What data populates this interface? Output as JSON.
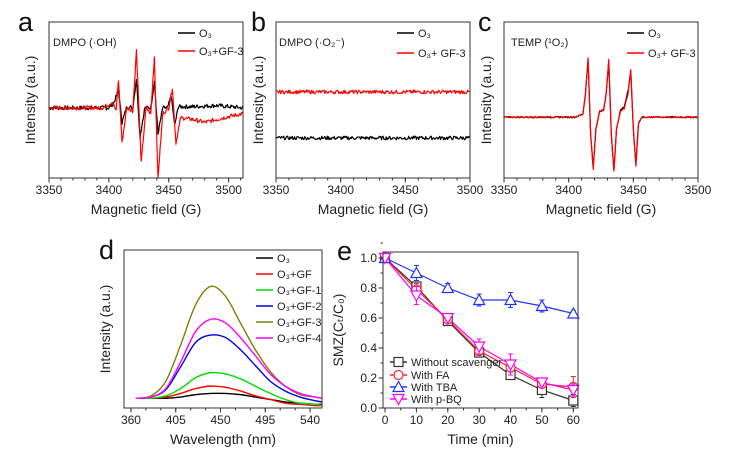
{
  "chart_data": [
    {
      "panel": "a",
      "type": "line",
      "annotation": "DMPO (·OH)",
      "xlabel": "Magnetic field (G)",
      "ylabel": "Intensity (a.u.)",
      "xlim": [
        3350,
        3512
      ],
      "ylim": [
        -1.21,
        1.48
      ],
      "xticks": [
        3350,
        3400,
        3450,
        3500
      ],
      "grid": false,
      "legend": "top-right",
      "series": [
        {
          "name": "O₃",
          "color": "#000000",
          "x": [
            3350,
            3380,
            3400,
            3404,
            3408,
            3411,
            3415,
            3420,
            3423,
            3426,
            3430,
            3435,
            3438,
            3441,
            3445,
            3449,
            3452,
            3455,
            3458,
            3470,
            3490,
            3512
          ],
          "y": [
            0,
            0,
            0,
            0.08,
            0.3,
            -0.25,
            0.02,
            0,
            0.5,
            -0.5,
            0,
            0,
            0.45,
            -0.45,
            0,
            0,
            0.2,
            -0.3,
            0.02,
            0.02,
            0.04,
            0
          ]
        },
        {
          "name": "O₃+GF-3",
          "color": "#ff0000",
          "x": [
            3350,
            3370,
            3395,
            3403,
            3406,
            3408,
            3411,
            3415,
            3420,
            3423,
            3427,
            3431,
            3435,
            3438,
            3441,
            3445,
            3450,
            3453,
            3456,
            3460,
            3470,
            3480,
            3490,
            3500,
            3512
          ],
          "y": [
            0,
            0,
            0,
            0.1,
            -0.05,
            0.48,
            -0.59,
            0,
            -0.05,
            1.0,
            -0.95,
            0,
            -0.1,
            0.88,
            -1.21,
            -0.1,
            0,
            0.34,
            -0.6,
            -0.17,
            -0.2,
            -0.25,
            -0.2,
            -0.15,
            -0.1
          ]
        }
      ]
    },
    {
      "panel": "b",
      "type": "line",
      "annotation": "DMPO (·O₂⁻)",
      "xlabel": "Magnetic field (G)",
      "ylabel": "Intensity (a.u.)",
      "xlim": [
        3350,
        3500
      ],
      "ylim": [
        -0.87,
        2.52
      ],
      "xticks": [
        3350,
        3400,
        3450,
        3500
      ],
      "grid": false,
      "legend": "top-right",
      "series": [
        {
          "name": "O₃",
          "color": "#000000",
          "x": [
            3350,
            3500
          ],
          "y": [
            0,
            0
          ]
        },
        {
          "name": "O₃+ GF-3",
          "color": "#ff0000",
          "x": [
            3350,
            3500
          ],
          "y": [
            1,
            1
          ]
        }
      ]
    },
    {
      "panel": "c",
      "type": "line",
      "annotation": "TEMP (¹O₂)",
      "xlabel": "Magnetic field (G)",
      "ylabel": "Intensity (a.u.)",
      "xlim": [
        3350,
        3500
      ],
      "ylim": [
        -1.03,
        1.61
      ],
      "xticks": [
        3350,
        3400,
        3450,
        3500
      ],
      "grid": false,
      "legend": "top-right",
      "series": [
        {
          "name": "O₃",
          "color": "#000000",
          "x": [
            3350,
            3405,
            3411,
            3413,
            3415,
            3417,
            3419,
            3421,
            3424,
            3427,
            3429,
            3431,
            3433,
            3435,
            3437,
            3440,
            3443,
            3446,
            3448,
            3450,
            3452,
            3454,
            3457,
            3500
          ],
          "y": [
            0,
            0,
            0.05,
            0.4,
            0.97,
            -0.3,
            -0.86,
            -0.2,
            0.1,
            0.12,
            0.4,
            0.94,
            -0.3,
            -0.9,
            -0.2,
            0.12,
            0.18,
            0.45,
            0.78,
            -0.2,
            -0.8,
            -0.1,
            0,
            0
          ]
        },
        {
          "name": "O₃+ GF-3",
          "color": "#ff0000",
          "x": [
            3350,
            3405,
            3411,
            3413,
            3415,
            3417,
            3419,
            3421,
            3424,
            3427,
            3429,
            3431,
            3433,
            3435,
            3437,
            3440,
            3443,
            3446,
            3448,
            3450,
            3452,
            3454,
            3457,
            3500
          ],
          "y": [
            0,
            0,
            0.05,
            0.4,
            1.0,
            -0.3,
            -0.88,
            -0.2,
            0.1,
            0.12,
            0.4,
            0.97,
            -0.3,
            -0.92,
            -0.2,
            0.1,
            0.15,
            0.4,
            0.8,
            -0.2,
            -0.83,
            -0.1,
            0,
            0
          ]
        }
      ]
    },
    {
      "panel": "d",
      "type": "line",
      "xlabel": "Wavelength (nm)",
      "ylabel": "Intensity (a.u.)",
      "xlim": [
        353,
        552
      ],
      "ylim": [
        0,
        130
      ],
      "xticks": [
        360,
        405,
        450,
        495,
        540
      ],
      "grid": false,
      "legend": "top-right",
      "x": [
        365,
        380,
        395,
        410,
        425,
        440,
        455,
        470,
        485,
        500,
        515,
        530,
        545,
        552
      ],
      "series": [
        {
          "name": "O₃",
          "color": "#000000",
          "values": [
            8,
            8,
            8,
            9,
            11,
            12,
            12,
            11,
            9,
            7,
            5,
            4,
            3,
            3
          ]
        },
        {
          "name": "O₃+GF",
          "color": "#ff0000",
          "values": [
            8,
            8,
            9,
            12,
            16,
            18,
            17,
            14,
            10,
            7,
            4,
            3,
            2,
            2
          ]
        },
        {
          "name": "O₃+GF-1",
          "color": "#00dd00",
          "values": [
            8,
            8,
            10,
            16,
            25,
            29,
            28,
            24,
            18,
            12,
            7,
            4,
            3,
            2
          ]
        },
        {
          "name": "O₃+GF-2",
          "color": "#0000ee",
          "values": [
            8,
            9,
            15,
            34,
            54,
            60,
            58,
            48,
            35,
            22,
            14,
            9,
            6,
            5
          ]
        },
        {
          "name": "O₃+GF-3",
          "color": "#808000",
          "values": [
            8,
            10,
            22,
            52,
            85,
            100,
            92,
            70,
            48,
            30,
            18,
            11,
            9,
            8
          ]
        },
        {
          "name": "O₃+GF-4",
          "color": "#ff00ff",
          "values": [
            8,
            9,
            16,
            38,
            63,
            73,
            70,
            58,
            43,
            28,
            18,
            12,
            9,
            8
          ]
        }
      ]
    },
    {
      "panel": "e",
      "type": "line",
      "xlabel": "Time (min)",
      "ylabel": "SMZ(Cₜ/C₀)",
      "xlim": [
        -0.65,
        61.5
      ],
      "ylim": [
        0,
        1.04
      ],
      "xticks": [
        0,
        10,
        20,
        30,
        40,
        50,
        60
      ],
      "yticks": [
        "0.0",
        "0.2",
        "0.4",
        "0.6",
        "0.8",
        "1.0"
      ],
      "grid": false,
      "legend": "bottom-left",
      "x": [
        0,
        10,
        20,
        30,
        40,
        50,
        60
      ],
      "series": [
        {
          "name": "Without scavenger",
          "color": "#333333",
          "marker": "square",
          "values": [
            1.0,
            0.81,
            0.58,
            0.37,
            0.22,
            0.12,
            0.05
          ],
          "errors": [
            0.02,
            0.03,
            0.02,
            0.03,
            0.02,
            0.05,
            0.04
          ]
        },
        {
          "name": "With FA",
          "color": "#ff2222",
          "marker": "circle",
          "values": [
            1.0,
            0.79,
            0.59,
            0.38,
            0.27,
            0.16,
            0.14
          ],
          "errors": [
            0.02,
            0.04,
            0.02,
            0.03,
            0.03,
            0.02,
            0.07
          ]
        },
        {
          "name": "With TBA",
          "color": "#2233ff",
          "marker": "triangle-up",
          "values": [
            1.0,
            0.9,
            0.8,
            0.72,
            0.72,
            0.68,
            0.63
          ],
          "errors": [
            0.02,
            0.05,
            0.03,
            0.04,
            0.05,
            0.04,
            0.02
          ]
        },
        {
          "name": "With p-BQ",
          "color": "#ff00ff",
          "marker": "triangle-down",
          "values": [
            1.0,
            0.75,
            0.6,
            0.41,
            0.29,
            0.17,
            0.12
          ],
          "errors": [
            0.02,
            0.06,
            0.02,
            0.05,
            0.07,
            0.02,
            0.04
          ]
        }
      ]
    }
  ],
  "panel_labels": [
    "a",
    "b",
    "c",
    "d",
    "e"
  ]
}
